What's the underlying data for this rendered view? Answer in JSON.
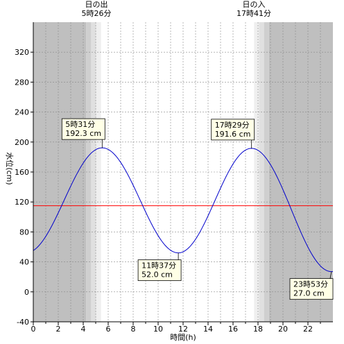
{
  "chart_data": {
    "type": "line",
    "xlabel": "時間(h)",
    "ylabel": "水位(cm)",
    "xlim": [
      0,
      24
    ],
    "ylim": [
      -40,
      360
    ],
    "x_ticks": [
      0,
      2,
      4,
      6,
      8,
      10,
      12,
      14,
      16,
      18,
      20,
      22
    ],
    "y_ticks": [
      -40,
      0,
      40,
      80,
      120,
      160,
      200,
      240,
      280,
      320
    ],
    "grid": true,
    "sunrise": {
      "label": "日の出",
      "time": "5時26分",
      "hour": 5.433
    },
    "sunset": {
      "label": "日の入",
      "time": "17時41分",
      "hour": 17.683
    },
    "reference_line": {
      "value": 115,
      "color": "#ff0000"
    },
    "series": [
      {
        "color": "#0000cc",
        "x": [
          0,
          5.517,
          11.617,
          17.483,
          23.883
        ],
        "y": [
          38,
          192.3,
          52.0,
          191.6,
          27.0
        ]
      }
    ],
    "annotations": [
      {
        "time": "5時31分",
        "value": "192.3 cm",
        "x": 5.517,
        "y": 192.3
      },
      {
        "time": "11時37分",
        "value": "52.0 cm",
        "x": 11.617,
        "y": 52.0
      },
      {
        "time": "17時29分",
        "value": "191.6 cm",
        "x": 17.483,
        "y": 191.6
      },
      {
        "time": "23時53分",
        "value": "27.0 cm",
        "x": 23.883,
        "y": 27.0
      }
    ],
    "colors": {
      "night": "#bfbfbf",
      "twilight_dark": "#cfcfcf",
      "twilight_mid": "#e0e0e0",
      "twilight_light": "#efefef",
      "callout_fill": "#ffffe6"
    }
  }
}
